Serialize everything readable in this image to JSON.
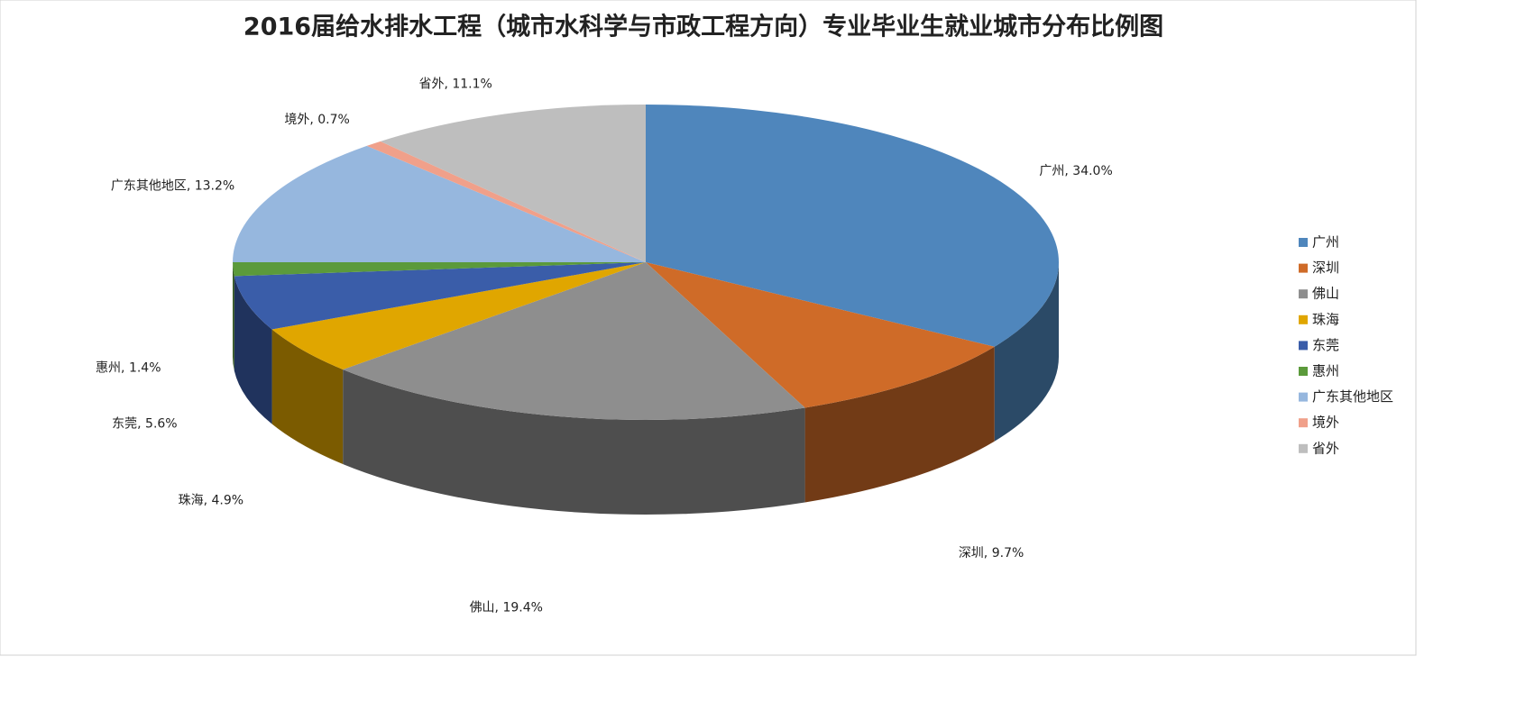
{
  "chart_data": {
    "type": "pie",
    "title": "2016届给水排水工程（城市水科学与市政工程方向）专业毕业生就业城市分布比例图",
    "categories": [
      "广州",
      "深圳",
      "佛山",
      "珠海",
      "东莞",
      "惠州",
      "广东其他地区",
      "境外",
      "省外"
    ],
    "values": [
      34.0,
      9.7,
      19.4,
      4.9,
      5.6,
      1.4,
      13.2,
      0.7,
      11.1
    ],
    "value_labels": [
      "广州, 34.0%",
      "深圳, 9.7%",
      "佛山, 19.4%",
      "珠海, 4.9%",
      "东莞, 5.6%",
      "惠州, 1.4%",
      "广东其他地区, 13.2%",
      "境外, 0.7%",
      "省外, 11.1%"
    ],
    "colors": [
      "#4f86bc",
      "#cf6b28",
      "#8e8e8e",
      "#e0a600",
      "#3a5da9",
      "#5b9a3b",
      "#96b7de",
      "#f0a08a",
      "#bebebe"
    ],
    "legend": "right",
    "three_d": true
  }
}
